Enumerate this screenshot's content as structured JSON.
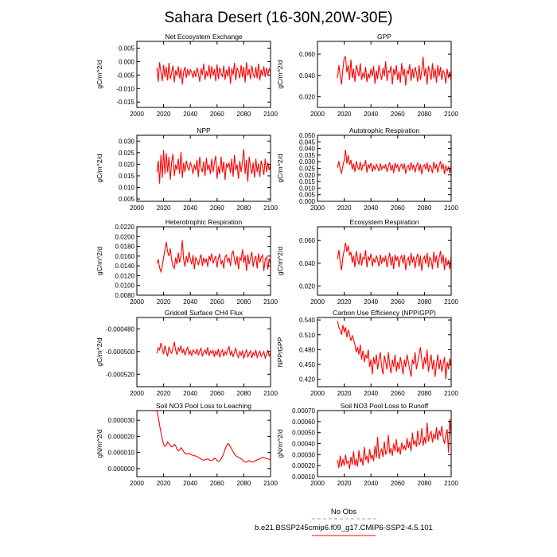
{
  "figure": {
    "title": "Sahara Desert (16-30N,20W-30E)",
    "legend": {
      "obs_label": "No Obs",
      "obs_color": "#9999ff",
      "model_label": "b.e21.BSSP245cmip6.f09_g17.CMIP6-SSP2-4.5.101",
      "model_color": "#ff0000"
    }
  },
  "chart_data": [
    {
      "type": "line",
      "title": "Net Ecosystem Exchange",
      "ylabel": "gC/m^2/d",
      "xlim": [
        2000,
        2100
      ],
      "ylim": [
        -0.017,
        0.0075
      ],
      "xticks": [
        2000,
        2020,
        2040,
        2060,
        2080,
        2100
      ],
      "xtick_labels": [
        "2000",
        "2020",
        "2040",
        "2060",
        "2080",
        "2100"
      ],
      "yticks": [
        -0.015,
        -0.01,
        -0.005,
        0,
        0.005
      ],
      "ytick_labels": [
        "-0.015",
        "-0.010",
        "-0.005",
        "0.000",
        "0.005"
      ],
      "x0": 2015,
      "amp": 0.01,
      "values": [
        0.5,
        -0.55,
        0.9,
        0.15,
        -0.5,
        0.7,
        -0.2,
        0.55,
        -0.45,
        0.85,
        -0.35,
        0.1,
        0.65,
        -0.6,
        0.3,
        -0.1,
        0.6,
        -0.3,
        0.45,
        -0.75,
        0.2,
        0.55,
        -0.25,
        0.4,
        -0.1,
        0.35,
        0.15,
        -0.25,
        0.3,
        -0.2,
        0.5,
        0.05,
        -0.55,
        0.45,
        -0.05,
        0.8,
        -0.4,
        0.25,
        -0.15,
        0.7,
        -0.3,
        0.6,
        -0.1,
        0.4,
        -0.5,
        0.75,
        -0.35,
        0.5,
        0.1,
        -0.2,
        0.65,
        -0.4,
        0.35,
        -0.15,
        0.6,
        -0.7,
        0.45,
        -0.05,
        0.85,
        -0.45,
        0.5,
        0.2,
        -0.3,
        0.7,
        -0.2,
        0.55,
        -0.6,
        0.9,
        -0.1,
        0.4,
        -0.35,
        0.65,
        0.05,
        -0.25,
        0.55,
        -0.3,
        0.8,
        -0.45,
        0.35,
        -0.1,
        0.6,
        -0.2,
        0.5,
        -0.05,
        0.4,
        0.2
      ]
    },
    {
      "type": "line",
      "title": "GPP",
      "ylabel": "gC/m^2/d",
      "xlim": [
        2000,
        2100
      ],
      "ylim": [
        0.01,
        0.072
      ],
      "xticks": [
        2000,
        2020,
        2040,
        2060,
        2080,
        2100
      ],
      "xtick_labels": [
        "2000",
        "2020",
        "2040",
        "2060",
        "2080",
        "2100"
      ],
      "yticks": [
        0.02,
        0.04,
        0.06
      ],
      "ytick_labels": [
        "0.020",
        "0.040",
        "0.060"
      ],
      "x0": 2015,
      "amp": 0.035,
      "values": [
        -0.2,
        0.5,
        -0.1,
        -0.55,
        0.3,
        0.9,
        0.95,
        0.1,
        0.5,
        -0.3,
        0.8,
        -0.2,
        0.3,
        -0.4,
        0.5,
        0.2,
        -0.1,
        0.6,
        -0.3,
        0.1,
        -0.2,
        0.4,
        -0.4,
        0.05,
        -0.2,
        0.3,
        -0.1,
        0.45,
        -0.5,
        0.2,
        -0.25,
        0.5,
        0.05,
        -0.3,
        0.35,
        -0.1,
        0.7,
        -0.35,
        0.2,
        0.1,
        0.45,
        -0.55,
        0.3,
        -0.05,
        0.5,
        -0.3,
        0.15,
        -0.45,
        0.6,
        -0.1,
        0.3,
        -0.6,
        0.2,
        0.05,
        0.55,
        -0.35,
        0.3,
        -0.2,
        0.4,
        0.1,
        -0.4,
        0.5,
        -0.3,
        0.2,
        0.95,
        -0.1,
        0.35,
        -0.55,
        0.45,
        0.1,
        -0.3,
        0.6,
        -0.2,
        0.3,
        -0.45,
        0.5,
        -0.1,
        0.4,
        -0.3,
        0.2,
        0.05,
        -0.5,
        0.3,
        -0.2,
        0.15,
        -0.35
      ]
    },
    {
      "type": "line",
      "title": "NPP",
      "ylabel": "gC/m^2/d",
      "xlim": [
        2000,
        2100
      ],
      "ylim": [
        0.004,
        0.0325
      ],
      "xticks": [
        2000,
        2020,
        2040,
        2060,
        2080,
        2100
      ],
      "xtick_labels": [
        "2000",
        "2020",
        "2040",
        "2060",
        "2080",
        "2100"
      ],
      "yticks": [
        0.005,
        0.01,
        0.015,
        0.02,
        0.025,
        0.03
      ],
      "ytick_labels": [
        "0.005",
        "0.010",
        "0.015",
        "0.020",
        "0.025",
        "0.030"
      ],
      "x0": 2015,
      "amp": 0.0165,
      "values": [
        -0.2,
        0.4,
        -0.8,
        0.7,
        -0.5,
        0.95,
        -0.3,
        0.8,
        -0.2,
        0.6,
        -0.6,
        0.3,
        0.75,
        -0.4,
        0.2,
        -0.1,
        0.5,
        -0.3,
        0.85,
        -0.5,
        0.3,
        -0.2,
        0.4,
        0.05,
        -0.1,
        0.3,
        0.1,
        -0.3,
        0.2,
        -0.1,
        0.45,
        -0.45,
        0.6,
        0.05,
        -0.2,
        0.35,
        -0.4,
        0.55,
        -0.1,
        0.2,
        -0.3,
        0.5,
        -0.2,
        0.3,
        0.65,
        -0.55,
        0.1,
        -0.3,
        0.6,
        -0.2,
        0.35,
        -0.6,
        0.25,
        0.05,
        0.3,
        -0.25,
        0.5,
        -0.45,
        0.7,
        -0.1,
        0.2,
        -0.55,
        0.4,
        -0.2,
        0.35,
        1.0,
        -0.3,
        0.45,
        -0.7,
        0.6,
        0.1,
        -0.3,
        0.3,
        -0.5,
        0.5,
        -0.2,
        0.25,
        -0.45,
        0.4,
        0.1,
        -0.35,
        0.5,
        -0.2,
        0.3,
        -0.1,
        0.2
      ]
    },
    {
      "type": "line",
      "title": "Autotrophic Respiration",
      "ylabel": "gC/m^2/d",
      "xlim": [
        2000,
        2100
      ],
      "ylim": [
        0,
        0.05
      ],
      "xticks": [
        2000,
        2020,
        2040,
        2060,
        2080,
        2100
      ],
      "xtick_labels": [
        "2000",
        "2020",
        "2040",
        "2060",
        "2080",
        "2100"
      ],
      "yticks": [
        0,
        0.005,
        0.01,
        0.015,
        0.02,
        0.025,
        0.03,
        0.035,
        0.04,
        0.045,
        0.05
      ],
      "ytick_labels": [
        "0.000",
        "0.005",
        "0.010",
        "0.015",
        "0.020",
        "0.025",
        "0.030",
        "0.035",
        "0.040",
        "0.045",
        "0.050"
      ],
      "x0": 2015,
      "amp": 0.018,
      "values": [
        0.05,
        0.6,
        -0.1,
        -0.4,
        0.2,
        0.7,
        1.55,
        0.4,
        1.1,
        0.3,
        0.7,
        -0.1,
        0.4,
        -0.3,
        0.6,
        0.1,
        -0.1,
        0.55,
        -0.2,
        0.3,
        0.2,
        0.7,
        -0.35,
        0.3,
        0.05,
        0.45,
        -0.3,
        0.2,
        -0.1,
        0.35,
        0.1,
        -0.25,
        0.4,
        -0.1,
        0.2,
        0.0,
        0.35,
        -0.3,
        0.15,
        0.5,
        -0.2,
        0.3,
        -0.4,
        0.45,
        0.05,
        0.3,
        -0.3,
        0.2,
        0.35,
        -0.1,
        0.4,
        -0.45,
        0.1,
        0.25,
        -0.2,
        0.5,
        -0.05,
        0.3,
        -0.35,
        0.2,
        0.45,
        -0.25,
        0.35,
        -0.5,
        0.15,
        0.3,
        -0.1,
        0.5,
        -0.3,
        0.25,
        0.1,
        -0.4,
        0.55,
        -0.05,
        0.35,
        -0.35,
        0.2,
        0.6,
        -0.1,
        0.4,
        -0.5,
        0.25,
        -0.2,
        0.1,
        -0.4,
        0.3
      ]
    },
    {
      "type": "line",
      "title": "Heterotrophic Respiration",
      "ylabel": "gC/m^2/d",
      "xlim": [
        2000,
        2100
      ],
      "ylim": [
        0.008,
        0.022
      ],
      "xticks": [
        2000,
        2020,
        2040,
        2060,
        2080,
        2100
      ],
      "xtick_labels": [
        "2000",
        "2020",
        "2040",
        "2060",
        "2080",
        "2100"
      ],
      "yticks": [
        0.008,
        0.01,
        0.012,
        0.014,
        0.016,
        0.018,
        0.02,
        0.022
      ],
      "ytick_labels": [
        "0.0080",
        "0.0100",
        "0.0120",
        "0.0140",
        "0.0160",
        "0.0180",
        "0.0200",
        "0.0220"
      ],
      "x0": 2015,
      "amp": 0.0068,
      "values": [
        -0.15,
        0.1,
        -0.4,
        -0.65,
        -0.3,
        0.2,
        0.7,
        1.15,
        0.55,
        0.3,
        0.75,
        0.1,
        -0.3,
        -0.45,
        0.2,
        -0.2,
        0.5,
        -0.1,
        0.35,
        1.25,
        0.1,
        -0.35,
        0.3,
        -0.1,
        0.55,
        0.1,
        -0.2,
        0.35,
        -0.5,
        0.2,
        0.05,
        -0.25,
        0.1,
        0.4,
        -0.3,
        0.2,
        -0.1,
        0.15,
        -0.35,
        0.3,
        0.05,
        0.45,
        -0.15,
        0.1,
        0.3,
        -0.4,
        0.2,
        0.4,
        -0.2,
        0.05,
        -0.45,
        0.25,
        0.35,
        -0.05,
        0.2,
        -0.3,
        0.4,
        0.6,
        0.1,
        -0.25,
        0.3,
        -0.5,
        0.2,
        0.05,
        0.7,
        -0.1,
        0.35,
        -0.6,
        0.4,
        -0.2,
        0.15,
        0.55,
        -0.35,
        0.1,
        0.3,
        -0.45,
        0.45,
        -0.1,
        0.2,
        0.35,
        -0.6,
        0.1,
        0.25,
        -0.5,
        0.15,
        -0.2
      ]
    },
    {
      "type": "line",
      "title": "Ecosystem Respiration",
      "ylabel": "gC/m^2/d",
      "xlim": [
        2000,
        2100
      ],
      "ylim": [
        0.012,
        0.072
      ],
      "xticks": [
        2000,
        2020,
        2040,
        2060,
        2080,
        2100
      ],
      "xtick_labels": [
        "2000",
        "2020",
        "2040",
        "2060",
        "2080",
        "2100"
      ],
      "yticks": [
        0.02,
        0.04,
        0.06
      ],
      "ytick_labels": [
        "0.020",
        "0.040",
        "0.060"
      ],
      "x0": 2015,
      "amp": 0.032,
      "values": [
        0.1,
        0.6,
        -0.1,
        -0.5,
        0.2,
        0.6,
        1.0,
        0.5,
        0.85,
        0.3,
        0.5,
        -0.1,
        0.3,
        -0.35,
        0.55,
        0.1,
        -0.2,
        0.45,
        -0.25,
        0.2,
        0.1,
        0.6,
        -0.35,
        0.25,
        0.05,
        0.4,
        -0.3,
        0.15,
        -0.1,
        0.3,
        0.05,
        -0.3,
        0.35,
        -0.15,
        0.2,
        -0.05,
        0.3,
        -0.35,
        0.1,
        0.45,
        -0.25,
        0.25,
        -0.45,
        0.35,
        0.0,
        0.25,
        -0.35,
        0.15,
        0.3,
        -0.15,
        0.35,
        -0.5,
        0.05,
        0.2,
        -0.25,
        0.45,
        -0.1,
        0.25,
        -0.4,
        0.15,
        0.4,
        -0.3,
        0.3,
        -0.55,
        0.1,
        0.25,
        -0.15,
        0.45,
        -0.35,
        0.2,
        0.05,
        -0.45,
        0.5,
        -0.1,
        0.3,
        -0.4,
        0.15,
        0.55,
        -0.15,
        0.35,
        -0.5,
        0.2,
        -0.25,
        0.05,
        -0.45,
        0.25
      ]
    },
    {
      "type": "line",
      "title": "Gridcell Surface CH4 Flux",
      "ylabel": "gC/m^2/d",
      "xlim": [
        2000,
        2100
      ],
      "ylim": [
        -0.000531,
        -0.00047
      ],
      "xticks": [
        2000,
        2020,
        2040,
        2060,
        2080,
        2100
      ],
      "xtick_labels": [
        "2000",
        "2020",
        "2040",
        "2060",
        "2080",
        "2100"
      ],
      "yticks": [
        -0.00052,
        -0.0005,
        -0.00048
      ],
      "ytick_labels": [
        "-0.000520",
        "-0.000500",
        "-0.000480"
      ],
      "x0": 2015,
      "amp": 1.9e-05,
      "values": [
        -0.1,
        0.4,
        0.2,
        0.85,
        0.3,
        -0.2,
        0.6,
        0.05,
        -0.4,
        0.5,
        0.1,
        -0.1,
        0.35,
        0.95,
        0.2,
        -0.25,
        0.4,
        0.1,
        0.6,
        -0.1,
        0.3,
        -0.3,
        0.15,
        0.45,
        -0.2,
        0.1,
        -0.35,
        0.2,
        0.05,
        -0.15,
        0.3,
        -0.3,
        0.1,
        0.35,
        -0.4,
        0.0,
        0.2,
        -0.2,
        0.45,
        -0.35,
        0.1,
        -0.1,
        0.15,
        -0.45,
        0.1,
        -0.25,
        0.3,
        -0.5,
        -0.05,
        0.2,
        -0.4,
        0.05,
        -0.2,
        0.25,
        0.5,
        -0.3,
        0.1,
        -0.45,
        0.0,
        0.35,
        -0.2,
        -0.5,
        0.05,
        -0.3,
        0.15,
        -0.6,
        -0.1,
        0.2,
        -0.45,
        -0.15,
        0.1,
        -0.55,
        -0.05,
        -0.3,
        0.2,
        -0.5,
        -0.15,
        0.1,
        -0.4,
        -0.2,
        0.05,
        -0.55,
        -0.25,
        0.15,
        -0.35,
        -0.1
      ]
    },
    {
      "type": "line",
      "title": "Carbon Use Efficiency (NPP/GPP)",
      "ylabel": "NPP/GPP",
      "xlim": [
        2000,
        2100
      ],
      "ylim": [
        0.405,
        0.545
      ],
      "xticks": [
        2000,
        2020,
        2040,
        2060,
        2080,
        2100
      ],
      "xtick_labels": [
        "2000",
        "2020",
        "2040",
        "2060",
        "2080",
        "2100"
      ],
      "yticks": [
        0.42,
        0.45,
        0.48,
        0.51,
        0.54
      ],
      "ytick_labels": [
        "0.420",
        "0.450",
        "0.480",
        "0.510",
        "0.540"
      ],
      "x0": 2015,
      "amp": 1.0,
      "values": [
        0.538,
        0.525,
        0.52,
        0.51,
        0.53,
        0.515,
        0.525,
        0.505,
        0.52,
        0.51,
        0.498,
        0.508,
        0.5,
        0.49,
        0.475,
        0.485,
        0.47,
        0.49,
        0.46,
        0.478,
        0.455,
        0.47,
        0.462,
        0.48,
        0.445,
        0.46,
        0.43,
        0.465,
        0.45,
        0.47,
        0.44,
        0.46,
        0.475,
        0.445,
        0.43,
        0.468,
        0.455,
        0.44,
        0.475,
        0.45,
        0.432,
        0.46,
        0.445,
        0.47,
        0.435,
        0.455,
        0.44,
        0.465,
        0.45,
        0.43,
        0.46,
        0.445,
        0.47,
        0.455,
        0.44,
        0.425,
        0.46,
        0.45,
        0.475,
        0.44,
        0.455,
        0.47,
        0.485,
        0.46,
        0.44,
        0.465,
        0.45,
        0.48,
        0.435,
        0.455,
        0.47,
        0.44,
        0.46,
        0.425,
        0.45,
        0.47,
        0.44,
        0.46,
        0.435,
        0.45,
        0.465,
        0.42,
        0.455,
        0.44,
        0.462,
        0.445
      ]
    },
    {
      "type": "line",
      "title": "Soil NO3 Pool Loss to Leaching",
      "ylabel": "gN/m^2/d",
      "xlim": [
        2000,
        2100
      ],
      "ylim": [
        -5e-06,
        3.6e-05
      ],
      "xticks": [
        2000,
        2020,
        2040,
        2060,
        2080,
        2100
      ],
      "xtick_labels": [
        "2000",
        "2020",
        "2040",
        "2060",
        "2080",
        "2100"
      ],
      "yticks": [
        0,
        1e-05,
        2e-05,
        3e-05
      ],
      "ytick_labels": [
        "0.000000",
        "0.000010",
        "0.000020",
        "0.000030"
      ],
      "x0": 2015,
      "amp": 1e-05,
      "values": [
        3.6,
        3.2,
        2.7,
        2.25,
        1.85,
        1.5,
        1.38,
        1.45,
        1.65,
        1.55,
        1.45,
        1.35,
        1.38,
        1.5,
        1.42,
        1.2,
        1.1,
        1.15,
        1.3,
        1.2,
        1.05,
        0.95,
        0.9,
        0.92,
        0.95,
        0.9,
        0.85,
        0.82,
        0.8,
        0.78,
        0.75,
        0.7,
        0.65,
        0.6,
        0.55,
        0.52,
        0.55,
        0.58,
        0.6,
        0.55,
        0.5,
        0.5,
        0.55,
        0.65,
        0.6,
        0.5,
        0.45,
        0.48,
        0.6,
        0.75,
        0.95,
        1.2,
        1.4,
        1.55,
        1.5,
        1.35,
        1.2,
        1.05,
        0.9,
        0.8,
        0.75,
        0.7,
        0.65,
        0.6,
        0.55,
        0.45,
        0.42,
        0.4,
        0.45,
        0.5,
        0.45,
        0.4,
        0.42,
        0.45,
        0.5,
        0.55,
        0.58,
        0.6,
        0.65,
        0.7,
        0.68,
        0.65,
        0.62,
        0.6,
        0.58,
        0.56
      ]
    },
    {
      "type": "line",
      "title": "Soil NO3 Pool Loss to Runoff",
      "ylabel": "gN/m^2/d",
      "xlim": [
        2000,
        2100
      ],
      "ylim": [
        0.0001,
        0.0007
      ],
      "xticks": [
        2000,
        2020,
        2040,
        2060,
        2080,
        2100
      ],
      "xtick_labels": [
        "2000",
        "2020",
        "2040",
        "2060",
        "2080",
        "2100"
      ],
      "yticks": [
        0.0001,
        0.0002,
        0.0003,
        0.0004,
        0.0005,
        0.0006,
        0.0007
      ],
      "ytick_labels": [
        "0.00010",
        "0.00020",
        "0.00030",
        "0.00040",
        "0.00050",
        "0.00060",
        "0.00070"
      ],
      "x0": 2015,
      "amp": 0.0001,
      "values": [
        2.5,
        1.8,
        2.9,
        1.9,
        2.6,
        2.0,
        3.0,
        2.2,
        2.4,
        1.7,
        2.8,
        2.1,
        3.3,
        2.0,
        2.6,
        1.9,
        3.4,
        2.3,
        2.7,
        2.0,
        3.7,
        2.5,
        2.9,
        2.2,
        3.5,
        2.6,
        3.0,
        2.4,
        3.8,
        2.7,
        4.6,
        2.6,
        3.2,
        3.5,
        2.8,
        4.2,
        3.0,
        3.4,
        4.8,
        3.1,
        3.6,
        2.9,
        4.0,
        3.3,
        4.4,
        3.2,
        3.7,
        3.0,
        4.1,
        3.5,
        3.8,
        3.4,
        4.5,
        3.6,
        4.2,
        3.3,
        5.0,
        3.9,
        4.3,
        3.7,
        5.2,
        3.9,
        4.1,
        5.4,
        3.8,
        4.6,
        4.0,
        5.9,
        4.2,
        4.8,
        5.1,
        4.1,
        4.9,
        4.4,
        5.5,
        4.3,
        5.2,
        4.7,
        5.6,
        4.5,
        4.0,
        4.8,
        5.3,
        3.2,
        6.2,
        4.6
      ]
    }
  ]
}
